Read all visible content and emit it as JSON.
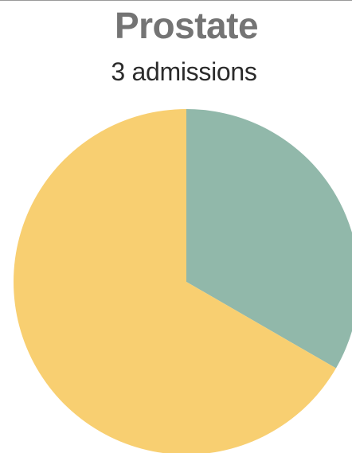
{
  "chart_data": {
    "type": "pie",
    "title": "Prostate",
    "subtitle": "3 admissions",
    "slices": [
      {
        "value": 1,
        "color": "#91b8aa"
      },
      {
        "value": 2,
        "color": "#f8cf71"
      }
    ],
    "start_angle_deg": 0,
    "direction": "clockwise",
    "legend": false
  }
}
